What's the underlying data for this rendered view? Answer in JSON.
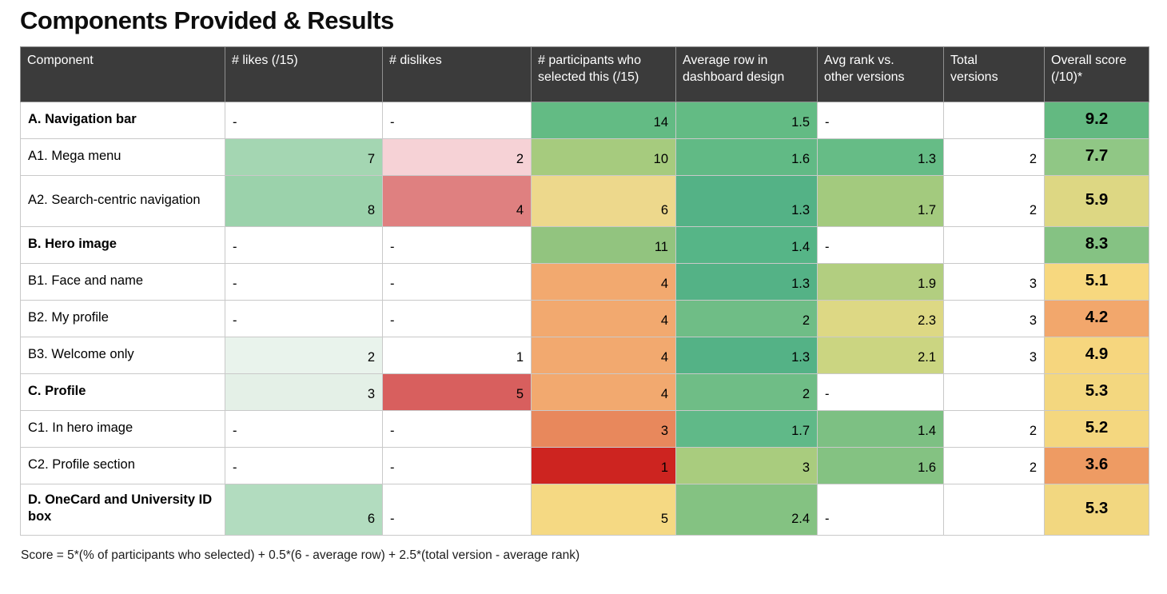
{
  "title": "Components Provided & Results",
  "footnote": "Score = 5*(% of participants who selected) + 0.5*(6 - average row) + 2.5*(total version - average rank)",
  "colors": {
    "header_bg": "#3b3b3b",
    "header_text": "#ffffff",
    "grid_line": "#c9c9c9",
    "page_bg": "#ffffff",
    "scale_green_strong": "#54b286",
    "scale_green_light": "#a4d6b2",
    "scale_yellow": "#edd88c",
    "scale_orange": "#f2a96f",
    "scale_red_strong": "#cd2420",
    "scale_pink_light": "#f6d2d6"
  },
  "chart_data": {
    "type": "table",
    "title": "Components Provided & Results",
    "columns": [
      "Component",
      "# likes (/15)",
      "# dislikes",
      "# participants who selected this (/15)",
      "Average row in dashboard design",
      "Avg rank vs. other versions",
      "Total versions",
      "Overall score (/10)*"
    ],
    "rows": [
      [
        "A. Navigation bar",
        "-",
        "-",
        14,
        1.5,
        "-",
        "",
        9.2
      ],
      [
        "A1. Mega menu",
        7,
        2,
        10,
        1.6,
        1.3,
        2,
        7.7
      ],
      [
        "A2. Search-centric navigation",
        8,
        4,
        6,
        1.3,
        1.7,
        2,
        5.9
      ],
      [
        "B. Hero image",
        "-",
        "-",
        11,
        1.4,
        "-",
        "",
        8.3
      ],
      [
        "B1. Face and name",
        "-",
        "-",
        4,
        1.3,
        1.9,
        3,
        5.1
      ],
      [
        "B2. My profile",
        "-",
        "-",
        4,
        2,
        2.3,
        3,
        4.2
      ],
      [
        "B3. Welcome only",
        2,
        1,
        4,
        1.3,
        2.1,
        3,
        4.9
      ],
      [
        "C. Profile",
        3,
        5,
        4,
        2,
        "-",
        "",
        5.3
      ],
      [
        "C1. In hero image",
        "-",
        "-",
        3,
        1.7,
        1.4,
        2,
        5.2
      ],
      [
        "C2. Profile section",
        "-",
        "-",
        1,
        3,
        1.6,
        2,
        3.6
      ],
      [
        "D. OneCard and University ID box",
        6,
        "-",
        5,
        2.4,
        "-",
        "",
        5.3
      ]
    ],
    "note": "Heatmap coloring: green = good, yellow = middle, red/orange = poor"
  },
  "table": {
    "header": [
      "Component",
      "# likes (/15)",
      "# dislikes",
      "# participants who selected this (/15)",
      "Average row in dashboard design",
      "Avg rank vs. other versions",
      "Total versions",
      "Overall score (/10)*"
    ],
    "rows": [
      {
        "component": "A. Navigation bar",
        "bold": true,
        "tall": false,
        "cells": [
          {
            "v": "-",
            "a": "l"
          },
          {
            "v": "-",
            "a": "l"
          },
          {
            "v": "14",
            "a": "r",
            "bg": "#63bb84"
          },
          {
            "v": "1.5",
            "a": "r",
            "bg": "#63bb84"
          },
          {
            "v": "-",
            "a": "l"
          },
          {
            "v": "",
            "a": "r"
          },
          {
            "v": "9.2",
            "a": "c",
            "bg": "#63b981"
          }
        ]
      },
      {
        "component": "A1. Mega menu",
        "bold": false,
        "tall": false,
        "cells": [
          {
            "v": "7",
            "a": "r",
            "bg": "#a4d6b2"
          },
          {
            "v": "2",
            "a": "r",
            "bg": "#f6d2d6"
          },
          {
            "v": "10",
            "a": "r",
            "bg": "#a6cb7e"
          },
          {
            "v": "1.6",
            "a": "r",
            "bg": "#61ba85"
          },
          {
            "v": "1.3",
            "a": "r",
            "bg": "#66bc86"
          },
          {
            "v": "2",
            "a": "r"
          },
          {
            "v": "7.7",
            "a": "c",
            "bg": "#90c785"
          }
        ]
      },
      {
        "component": "A2. Search-centric navigation",
        "bold": false,
        "tall": true,
        "cells": [
          {
            "v": "8",
            "a": "r",
            "bg": "#9bd2ab"
          },
          {
            "v": "4",
            "a": "r",
            "bg": "#df8080"
          },
          {
            "v": "6",
            "a": "r",
            "bg": "#edd88c"
          },
          {
            "v": "1.3",
            "a": "r",
            "bg": "#54b286"
          },
          {
            "v": "1.7",
            "a": "r",
            "bg": "#a3ca7e"
          },
          {
            "v": "2",
            "a": "r"
          },
          {
            "v": "5.9",
            "a": "c",
            "bg": "#ddd783"
          }
        ]
      },
      {
        "component": "B. Hero image",
        "bold": true,
        "tall": false,
        "cells": [
          {
            "v": "-",
            "a": "l"
          },
          {
            "v": "-",
            "a": "l"
          },
          {
            "v": "11",
            "a": "r",
            "bg": "#92c47f"
          },
          {
            "v": "1.4",
            "a": "r",
            "bg": "#56b587"
          },
          {
            "v": "-",
            "a": "l"
          },
          {
            "v": "",
            "a": "r"
          },
          {
            "v": "8.3",
            "a": "c",
            "bg": "#85c283"
          }
        ]
      },
      {
        "component": "B1. Face and name",
        "bold": false,
        "tall": false,
        "cells": [
          {
            "v": "-",
            "a": "l"
          },
          {
            "v": "-",
            "a": "l"
          },
          {
            "v": "4",
            "a": "r",
            "bg": "#f2a96f"
          },
          {
            "v": "1.3",
            "a": "r",
            "bg": "#54b286"
          },
          {
            "v": "1.9",
            "a": "r",
            "bg": "#b2ce80"
          },
          {
            "v": "3",
            "a": "r"
          },
          {
            "v": "5.1",
            "a": "c",
            "bg": "#f7d87f"
          }
        ]
      },
      {
        "component": "B2. My profile",
        "bold": false,
        "tall": false,
        "cells": [
          {
            "v": "-",
            "a": "l"
          },
          {
            "v": "-",
            "a": "l"
          },
          {
            "v": "4",
            "a": "r",
            "bg": "#f2a96f"
          },
          {
            "v": "2",
            "a": "r",
            "bg": "#6fbd86"
          },
          {
            "v": "2.3",
            "a": "r",
            "bg": "#ddd884"
          },
          {
            "v": "3",
            "a": "r"
          },
          {
            "v": "4.2",
            "a": "c",
            "bg": "#f2a76c"
          }
        ]
      },
      {
        "component": "B3. Welcome only",
        "bold": false,
        "tall": false,
        "cells": [
          {
            "v": "2",
            "a": "r",
            "bg": "#e9f3ec"
          },
          {
            "v": "1",
            "a": "r"
          },
          {
            "v": "4",
            "a": "r",
            "bg": "#f2a96f"
          },
          {
            "v": "1.3",
            "a": "r",
            "bg": "#54b286"
          },
          {
            "v": "2.1",
            "a": "r",
            "bg": "#cbd581"
          },
          {
            "v": "3",
            "a": "r"
          },
          {
            "v": "4.9",
            "a": "c",
            "bg": "#f6d67e"
          }
        ]
      },
      {
        "component": "C. Profile",
        "bold": true,
        "tall": false,
        "cells": [
          {
            "v": "3",
            "a": "r",
            "bg": "#e4f0e7"
          },
          {
            "v": "5",
            "a": "r",
            "bg": "#d85f5e"
          },
          {
            "v": "4",
            "a": "r",
            "bg": "#f2a96f"
          },
          {
            "v": "2",
            "a": "r",
            "bg": "#6fbd86"
          },
          {
            "v": "-",
            "a": "l"
          },
          {
            "v": "",
            "a": "r"
          },
          {
            "v": "5.3",
            "a": "c",
            "bg": "#f3d77f"
          }
        ]
      },
      {
        "component": "C1. In hero image",
        "bold": false,
        "tall": false,
        "cells": [
          {
            "v": "-",
            "a": "l"
          },
          {
            "v": "-",
            "a": "l"
          },
          {
            "v": "3",
            "a": "r",
            "bg": "#e8885c"
          },
          {
            "v": "1.7",
            "a": "r",
            "bg": "#60b988"
          },
          {
            "v": "1.4",
            "a": "r",
            "bg": "#7dc083"
          },
          {
            "v": "2",
            "a": "r"
          },
          {
            "v": "5.2",
            "a": "c",
            "bg": "#f4d77f"
          }
        ]
      },
      {
        "component": "C2. Profile section",
        "bold": false,
        "tall": false,
        "cells": [
          {
            "v": "-",
            "a": "l"
          },
          {
            "v": "-",
            "a": "l"
          },
          {
            "v": "1",
            "a": "r",
            "bg": "#cd2420"
          },
          {
            "v": "3",
            "a": "r",
            "bg": "#a9cc7e"
          },
          {
            "v": "1.6",
            "a": "r",
            "bg": "#84c282"
          },
          {
            "v": "2",
            "a": "r"
          },
          {
            "v": "3.6",
            "a": "c",
            "bg": "#ee9b63"
          }
        ]
      },
      {
        "component": "D. OneCard and University ID box",
        "bold": true,
        "tall": true,
        "cells": [
          {
            "v": "6",
            "a": "r",
            "bg": "#b2dcbf"
          },
          {
            "v": "-",
            "a": "l"
          },
          {
            "v": "5",
            "a": "r",
            "bg": "#f5d983"
          },
          {
            "v": "2.4",
            "a": "r",
            "bg": "#84c282"
          },
          {
            "v": "-",
            "a": "l"
          },
          {
            "v": "",
            "a": "r"
          },
          {
            "v": "5.3",
            "a": "c",
            "bg": "#f2d780"
          }
        ]
      }
    ]
  }
}
